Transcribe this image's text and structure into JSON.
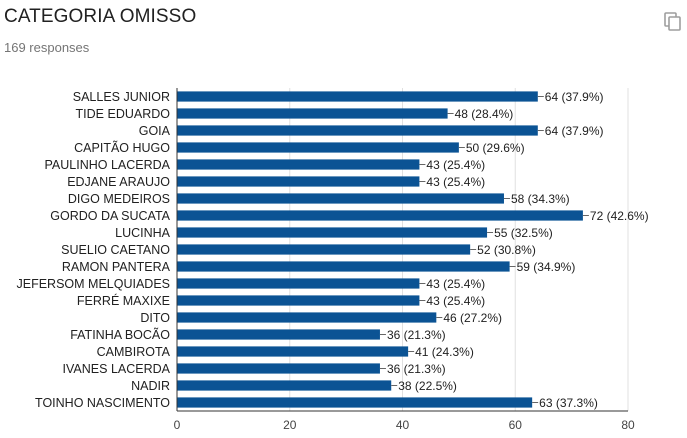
{
  "header": {
    "title": "CATEGORIA OMISSO",
    "subtitle": "169 responses",
    "copy_icon": "copy-icon"
  },
  "colors": {
    "bar": "#0b5394",
    "grid": "#e0e0e0",
    "axis": "#333333",
    "text": "#212121"
  },
  "chart_data": {
    "type": "bar",
    "orientation": "horizontal",
    "title": "CATEGORIA OMISSO",
    "categories": [
      "SALLES JUNIOR",
      "TIDE EDUARDO",
      "GOIA",
      "CAPITÃO HUGO",
      "PAULINHO LACERDA",
      "EDJANE ARAUJO",
      "DIGO MEDEIROS",
      "GORDO DA SUCATA",
      "LUCINHA",
      "SUELIO CAETANO",
      "RAMON PANTERA",
      "JEFERSOM MELQUIADES",
      "FERRÉ MAXIXE",
      "DITO",
      "FATINHA BOCÃO",
      "CAMBIROTA",
      "IVANES LACERDA",
      "NADIR",
      "TOINHO NASCIMENTO"
    ],
    "values": [
      64,
      48,
      64,
      50,
      43,
      43,
      58,
      72,
      55,
      52,
      59,
      43,
      43,
      46,
      36,
      41,
      36,
      38,
      63
    ],
    "data_labels": [
      "64 (37.9%)",
      "48 (28.4%)",
      "64 (37.9%)",
      "50 (29.6%)",
      "43 (25.4%)",
      "43 (25.4%)",
      "58 (34.3%)",
      "72 (42.6%)",
      "55 (32.5%)",
      "52 (30.8%)",
      "59 (34.9%)",
      "43 (25.4%)",
      "43 (25.4%)",
      "46 (27.2%)",
      "36 (21.3%)",
      "41 (24.3%)",
      "36 (21.3%)",
      "38 (22.5%)",
      "63 (37.3%)"
    ],
    "xlim": [
      0,
      80
    ],
    "xticks": [
      "0",
      "20",
      "40",
      "60",
      "80"
    ],
    "grid": true,
    "legend": "none"
  }
}
